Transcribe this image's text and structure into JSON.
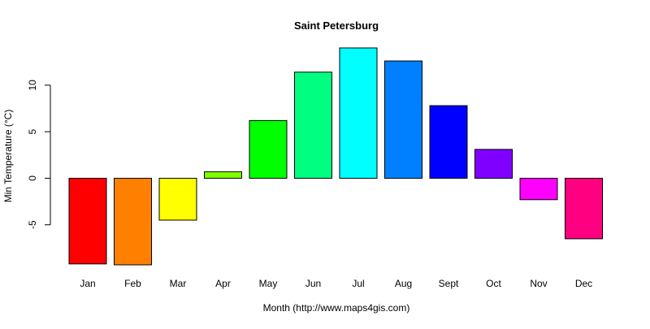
{
  "chart_data": {
    "type": "bar",
    "title": "Saint Petersburg",
    "xlabel": "Month (http://www.maps4gis.com)",
    "ylabel": "Min Temperature (°C)",
    "categories": [
      "Jan",
      "Feb",
      "Mar",
      "Apr",
      "May",
      "Jun",
      "Jul",
      "Aug",
      "Sept",
      "Oct",
      "Nov",
      "Dec"
    ],
    "values": [
      -9.2,
      -9.3,
      -4.5,
      0.7,
      6.2,
      11.4,
      14.0,
      12.6,
      7.8,
      3.1,
      -2.3,
      -6.5
    ],
    "colors": [
      "#FF0000",
      "#FF8000",
      "#FFFF00",
      "#80FF00",
      "#00FF00",
      "#00FF80",
      "#00FFFF",
      "#0080FF",
      "#0000FF",
      "#8000FF",
      "#FF00FF",
      "#FF0080"
    ],
    "yticks": [
      -5,
      0,
      5,
      10
    ],
    "ylim": [
      -9.3,
      14.0
    ],
    "grid": false,
    "legend": "none"
  }
}
